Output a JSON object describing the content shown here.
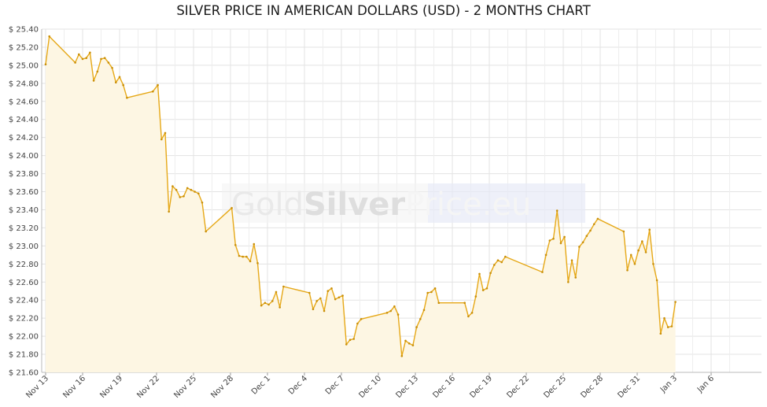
{
  "chart_data": {
    "type": "area",
    "title": "SILVER PRICE IN AMERICAN DOLLARS (USD) - 2 MONTHS CHART",
    "xlabel": "",
    "ylabel": "",
    "ylim": [
      21.6,
      25.4
    ],
    "y_ticks": [
      "$ 25.40",
      "$ 25.20",
      "$ 25.00",
      "$ 24.80",
      "$ 24.60",
      "$ 24.40",
      "$ 24.20",
      "$ 24.00",
      "$ 23.80",
      "$ 23.60",
      "$ 23.40",
      "$ 23.20",
      "$ 23.00",
      "$ 22.80",
      "$ 22.60",
      "$ 22.40",
      "$ 22.20",
      "$ 22.00",
      "$ 21.80",
      "$ 21.60"
    ],
    "x_ticks": [
      "Nov 13",
      "Nov 16",
      "Nov 19",
      "Nov 22",
      "Nov 25",
      "Nov 28",
      "Dec 1",
      "Dec 4",
      "Dec 7",
      "Dec 10",
      "Dec 13",
      "Dec 16",
      "Dec 19",
      "Dec 22",
      "Dec 25",
      "Dec 28",
      "Dec 31",
      "Jan 3",
      "Jan 6"
    ],
    "grid": true,
    "line_color": "#e6a817",
    "fill_color": "#fdf6e3",
    "watermark": "GoldSilverPrice.eu",
    "series": [
      {
        "values": [
          [
            0.0,
            25.01
          ],
          [
            0.3,
            25.32
          ],
          [
            2.4,
            25.03
          ],
          [
            2.7,
            25.12
          ],
          [
            3.0,
            25.07
          ],
          [
            3.3,
            25.08
          ],
          [
            3.6,
            25.14
          ],
          [
            3.9,
            24.83
          ],
          [
            4.2,
            24.93
          ],
          [
            4.5,
            25.07
          ],
          [
            4.8,
            25.08
          ],
          [
            5.1,
            25.03
          ],
          [
            5.4,
            24.97
          ],
          [
            5.7,
            24.81
          ],
          [
            6.0,
            24.87
          ],
          [
            6.3,
            24.78
          ],
          [
            6.6,
            24.64
          ],
          [
            8.7,
            24.71
          ],
          [
            9.1,
            24.78
          ],
          [
            9.4,
            24.18
          ],
          [
            9.7,
            24.25
          ],
          [
            10.0,
            23.38
          ],
          [
            10.3,
            23.66
          ],
          [
            10.6,
            23.62
          ],
          [
            10.9,
            23.54
          ],
          [
            11.2,
            23.55
          ],
          [
            11.5,
            23.64
          ],
          [
            11.8,
            23.62
          ],
          [
            12.1,
            23.6
          ],
          [
            12.4,
            23.58
          ],
          [
            12.7,
            23.48
          ],
          [
            13.0,
            23.16
          ],
          [
            15.1,
            23.42
          ],
          [
            15.4,
            23.01
          ],
          [
            15.7,
            22.89
          ],
          [
            16.0,
            22.88
          ],
          [
            16.3,
            22.88
          ],
          [
            16.6,
            22.83
          ],
          [
            16.9,
            23.02
          ],
          [
            17.2,
            22.81
          ],
          [
            17.5,
            22.34
          ],
          [
            17.8,
            22.37
          ],
          [
            18.1,
            22.35
          ],
          [
            18.4,
            22.39
          ],
          [
            18.7,
            22.49
          ],
          [
            19.0,
            22.32
          ],
          [
            19.3,
            22.55
          ],
          [
            21.4,
            22.48
          ],
          [
            21.7,
            22.3
          ],
          [
            22.0,
            22.39
          ],
          [
            22.3,
            22.42
          ],
          [
            22.6,
            22.28
          ],
          [
            22.9,
            22.5
          ],
          [
            23.2,
            22.53
          ],
          [
            23.5,
            22.41
          ],
          [
            23.8,
            22.43
          ],
          [
            24.1,
            22.45
          ],
          [
            24.4,
            21.91
          ],
          [
            24.7,
            21.96
          ],
          [
            25.0,
            21.97
          ],
          [
            25.3,
            22.14
          ],
          [
            25.6,
            22.19
          ],
          [
            27.7,
            22.26
          ],
          [
            28.0,
            22.28
          ],
          [
            28.3,
            22.33
          ],
          [
            28.6,
            22.24
          ],
          [
            28.9,
            21.78
          ],
          [
            29.2,
            21.95
          ],
          [
            29.5,
            21.92
          ],
          [
            29.8,
            21.9
          ],
          [
            30.1,
            22.1
          ],
          [
            30.4,
            22.19
          ],
          [
            30.7,
            22.29
          ],
          [
            31.0,
            22.48
          ],
          [
            31.3,
            22.49
          ],
          [
            31.6,
            22.53
          ],
          [
            31.9,
            22.37
          ],
          [
            34.0,
            22.37
          ],
          [
            34.3,
            22.22
          ],
          [
            34.6,
            22.26
          ],
          [
            34.9,
            22.44
          ],
          [
            35.2,
            22.69
          ],
          [
            35.5,
            22.51
          ],
          [
            35.8,
            22.53
          ],
          [
            36.1,
            22.7
          ],
          [
            36.4,
            22.79
          ],
          [
            36.7,
            22.84
          ],
          [
            37.0,
            22.82
          ],
          [
            37.3,
            22.88
          ],
          [
            40.3,
            22.71
          ],
          [
            40.6,
            22.9
          ],
          [
            40.9,
            23.06
          ],
          [
            41.2,
            23.08
          ],
          [
            41.5,
            23.39
          ],
          [
            41.8,
            23.03
          ],
          [
            42.1,
            23.1
          ],
          [
            42.4,
            22.6
          ],
          [
            42.7,
            22.84
          ],
          [
            43.0,
            22.65
          ],
          [
            43.3,
            22.99
          ],
          [
            43.6,
            23.04
          ],
          [
            43.9,
            23.11
          ],
          [
            44.2,
            23.17
          ],
          [
            44.5,
            23.24
          ],
          [
            44.8,
            23.3
          ],
          [
            46.9,
            23.16
          ],
          [
            47.2,
            22.73
          ],
          [
            47.5,
            22.9
          ],
          [
            47.8,
            22.8
          ],
          [
            48.1,
            22.95
          ],
          [
            48.4,
            23.05
          ],
          [
            48.7,
            22.93
          ],
          [
            49.0,
            23.18
          ],
          [
            49.3,
            22.8
          ],
          [
            49.6,
            22.62
          ],
          [
            49.9,
            22.03
          ],
          [
            50.2,
            22.2
          ],
          [
            50.5,
            22.1
          ],
          [
            50.8,
            22.11
          ],
          [
            51.1,
            22.38
          ]
        ]
      }
    ]
  }
}
